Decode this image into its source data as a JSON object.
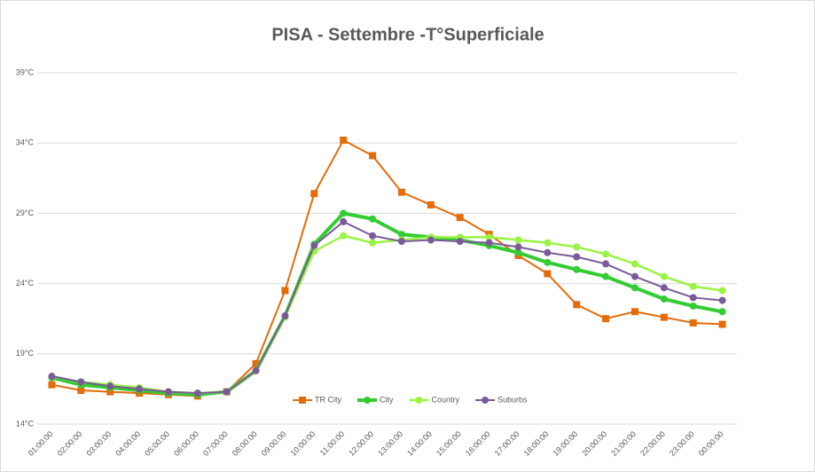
{
  "chart_data": {
    "type": "line",
    "title": "PISA - Settembre -T°Superficiale",
    "categories": [
      "01:00:00",
      "02:00:00",
      "03:00:00",
      "04:00:00",
      "05:00:00",
      "06:00:00",
      "07:00:00",
      "08:00:00",
      "09:00:00",
      "10:00:00",
      "11:00:00",
      "12:00:00",
      "13:00:00",
      "14:00:00",
      "15:00:00",
      "16:00:00",
      "17:00:00",
      "18:00:00",
      "19:00:00",
      "20:00:00",
      "21:00:00",
      "22:00:00",
      "23:00:00",
      "00:00:00"
    ],
    "series": [
      {
        "name": "TR City",
        "color": "#e46c0a",
        "marker": "square",
        "width": 2,
        "values": [
          16.8,
          16.4,
          16.3,
          16.2,
          16.1,
          16.0,
          16.3,
          18.3,
          23.5,
          30.4,
          34.2,
          33.1,
          30.5,
          29.6,
          28.7,
          27.5,
          26.0,
          24.7,
          22.5,
          21.5,
          22.0,
          21.6,
          21.2,
          21.1
        ]
      },
      {
        "name": "City",
        "color": "#33cc33",
        "marker": "circle",
        "width": 4,
        "values": [
          17.3,
          16.8,
          16.6,
          16.4,
          16.2,
          16.1,
          16.3,
          17.8,
          21.7,
          26.8,
          29.0,
          28.6,
          27.5,
          27.3,
          27.1,
          26.7,
          26.2,
          25.5,
          25.0,
          24.5,
          23.7,
          22.9,
          22.4,
          22.0
        ]
      },
      {
        "name": "Country",
        "color": "#99f443",
        "marker": "circle",
        "width": 2.5,
        "values": [
          17.4,
          17.0,
          16.8,
          16.6,
          16.3,
          16.2,
          16.3,
          17.8,
          21.6,
          26.3,
          27.4,
          26.9,
          27.1,
          27.3,
          27.3,
          27.3,
          27.1,
          26.9,
          26.6,
          26.1,
          25.4,
          24.5,
          23.8,
          23.5
        ]
      },
      {
        "name": "Suburbs",
        "color": "#7b5a99",
        "marker": "circle",
        "width": 2,
        "values": [
          17.4,
          17.0,
          16.7,
          16.5,
          16.3,
          16.2,
          16.3,
          17.8,
          21.7,
          26.7,
          28.4,
          27.4,
          27.0,
          27.1,
          27.0,
          26.9,
          26.6,
          26.2,
          25.9,
          25.4,
          24.5,
          23.7,
          23.0,
          22.8
        ]
      }
    ],
    "ylim": [
      14,
      39
    ],
    "yticks": [
      {
        "value": 14,
        "label": "14°C"
      },
      {
        "value": 19,
        "label": "19°C"
      },
      {
        "value": 24,
        "label": "24°C"
      },
      {
        "value": 29,
        "label": "29°C"
      },
      {
        "value": 34,
        "label": "34°C"
      },
      {
        "value": 39,
        "label": "39°C"
      }
    ],
    "grid": true,
    "legend": "bottom"
  }
}
